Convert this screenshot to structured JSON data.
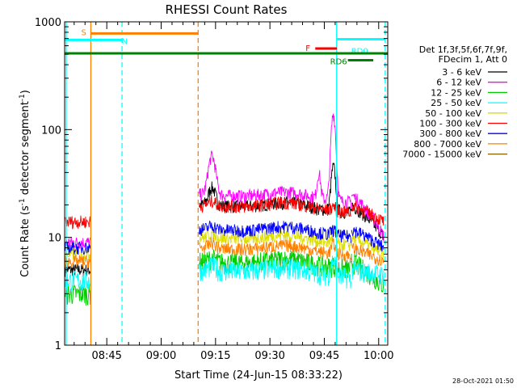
{
  "chart_data": {
    "type": "line",
    "title": "RHESSI Count Rates",
    "xlabel": "Start Time (24-Jun-15 08:33:22)",
    "ylabel_prefix": "Count Rate (s",
    "ylabel_sup": "-1",
    "ylabel_mid": " detector segment",
    "ylabel_sup2": "-1",
    "ylabel_suffix": ")",
    "yscale": "log",
    "ylim": [
      1,
      1000
    ],
    "xlim_minutes": [
      33.37,
      122.5
    ],
    "x_ticks": [
      {
        "label": "08:45",
        "min": 45
      },
      {
        "label": "09:00",
        "min": 60
      },
      {
        "label": "09:15",
        "min": 75
      },
      {
        "label": "09:30",
        "min": 90
      },
      {
        "label": "09:45",
        "min": 105
      },
      {
        "label": "10:00",
        "min": 120
      }
    ],
    "y_ticks": [
      {
        "label": "1",
        "v": 1
      },
      {
        "label": "10",
        "v": 10
      },
      {
        "label": "100",
        "v": 100
      },
      {
        "label": "1000",
        "v": 1000
      }
    ],
    "legend_header": [
      "Det 1f,3f,5f,6f,7f,9f,",
      "FDecim 1, Att 0"
    ],
    "series": [
      {
        "name": "3 - 6 keV",
        "color": "#000000",
        "seg1": 5,
        "seg2": 20,
        "seg2_end": 10,
        "flare_x": 107.5,
        "flare_peak": 50,
        "early_peak": 30
      },
      {
        "name": "6 - 12 keV",
        "color": "#ff00ff",
        "seg1": 9,
        "seg2": 25,
        "seg2_end": 10,
        "flare_x": 107.5,
        "flare_peak": 160,
        "early_peak": 60
      },
      {
        "name": "12 - 25 keV",
        "color": "#00cc00",
        "seg1": 3,
        "seg2": 6,
        "seg2_end": 3.5,
        "flare_x": 107.5,
        "flare_peak": 5.5,
        "early_peak": 6.5
      },
      {
        "name": "25 - 50 keV",
        "color": "#00ffff",
        "seg1": 4,
        "seg2": 5,
        "seg2_end": 4.5,
        "flare_x": 107.5,
        "flare_peak": 6.5,
        "early_peak": 5.5
      },
      {
        "name": "50 - 100 keV",
        "color": "#dddd00",
        "seg1": 7,
        "seg2": 10,
        "seg2_end": 7,
        "flare_x": 107.5,
        "flare_peak": 11,
        "early_peak": 11
      },
      {
        "name": "100 - 300 keV",
        "color": "#ff0000",
        "seg1": 14,
        "seg2": 20,
        "seg2_end": 14,
        "flare_x": 107.5,
        "flare_peak": 20,
        "early_peak": 22
      },
      {
        "name": "300 - 800 keV",
        "color": "#0000ff",
        "seg1": 8,
        "seg2": 12,
        "seg2_end": 8,
        "flare_x": 107.5,
        "flare_peak": 12,
        "early_peak": 13
      },
      {
        "name": "800 - 7000 keV",
        "color": "#ff8000",
        "seg1": 6,
        "seg2": 8,
        "seg2_end": 6,
        "flare_x": 107.5,
        "flare_peak": 9,
        "early_peak": 9
      },
      {
        "name": "7000 - 15000 keV",
        "color": "#806000",
        "seg1": null,
        "seg2": null,
        "seg2_end": null,
        "flare_x": null,
        "flare_peak": null,
        "early_peak": null
      }
    ],
    "data_segments_minutes": [
      [
        33.5,
        40.5
      ],
      [
        70.5,
        112.5
      ],
      [
        112.5,
        121.5
      ]
    ],
    "vertical_markers": [
      {
        "min": 33.8,
        "color": "#00ffff",
        "style": "solid"
      },
      {
        "min": 40.6,
        "color": "#ff8000",
        "style": "solid"
      },
      {
        "min": 49.2,
        "color": "#00ffff",
        "style": "dashed"
      },
      {
        "min": 70.2,
        "color": "#ff8000",
        "style": "dashed"
      },
      {
        "min": 108.4,
        "color": "#00ffff",
        "style": "solid"
      },
      {
        "min": 121.8,
        "color": "#00ffff",
        "style": "dashed"
      }
    ],
    "flag_bars": [
      {
        "label": "S",
        "color": "#ff8000",
        "x0": 40.6,
        "x1": 70.2,
        "y": 780
      },
      {
        "label": "N",
        "color": "#00ffff",
        "x0": 33.5,
        "x1": 49.2,
        "y": 680
      },
      {
        "label": "F",
        "color": "#ff0000",
        "x0": 102.5,
        "x1": 108.5,
        "y": 565
      },
      {
        "label": "RD0",
        "color": "#00ffff",
        "x0": 108.4,
        "x1": 121.8,
        "y": 690
      },
      {
        "label": "RD6",
        "color": "#008000",
        "x0": 111.5,
        "x1": 118.5,
        "y": 440
      },
      {
        "label": "",
        "color": "#008000",
        "x0": 33.5,
        "x1": 122.5,
        "y": 510
      }
    ]
  },
  "footer": {
    "timestamp": "28-Oct-2021 01:50"
  }
}
